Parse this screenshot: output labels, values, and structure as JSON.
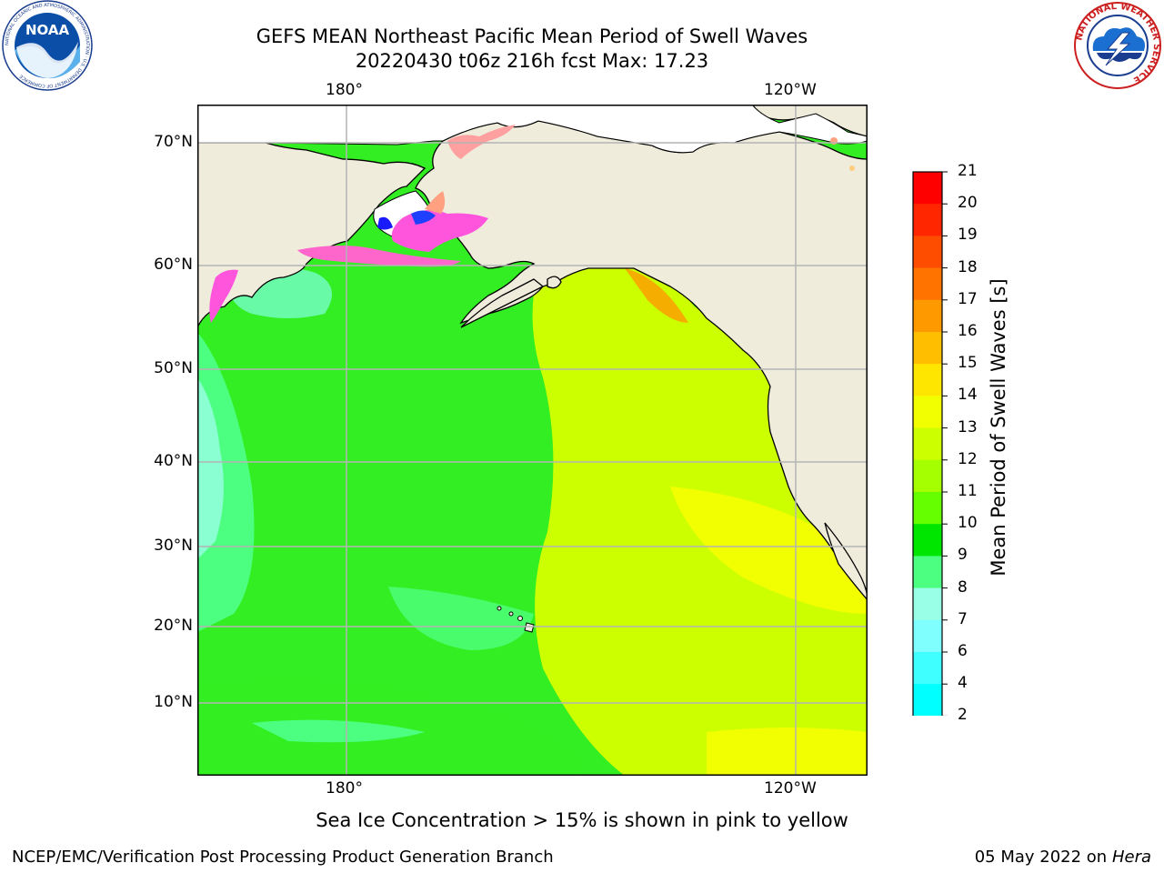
{
  "header": {
    "title_line1": "GEFS MEAN Northeast Pacific Mean Period of Swell Waves",
    "title_line2": "20220430 t06z 216h fcst    Max: 17.23"
  },
  "logos": {
    "left": {
      "name": "noaa-logo",
      "text": "NOAA",
      "ring_text": "NATIONAL OCEANIC AND ATMOSPHERIC ADMINISTRATION · U.S. DEPARTMENT OF COMMERCE"
    },
    "right": {
      "name": "nws-logo",
      "ring_text": "NATIONAL WEATHER SERVICE"
    }
  },
  "map": {
    "lon_ticks": [
      "180°",
      "120°W"
    ],
    "lat_ticks": [
      "70°N",
      "60°N",
      "50°N",
      "40°N",
      "30°N",
      "20°N",
      "10°N"
    ],
    "land_color": "#efecdc",
    "grid_color": "#b4b4b4"
  },
  "colorbar": {
    "label": "Mean Period of Swell Waves [s]",
    "tick_labels": [
      "21",
      "20",
      "19",
      "18",
      "17",
      "16",
      "15",
      "14",
      "13",
      "12",
      "11",
      "10",
      "9",
      "8",
      "7",
      "6",
      "4",
      "2"
    ],
    "colors_top_to_bottom": [
      "#ff0000",
      "#ff2600",
      "#ff4d00",
      "#ff7300",
      "#ff9900",
      "#ffbf00",
      "#ffe600",
      "#f2ff00",
      "#ccff00",
      "#a6ff00",
      "#66ff00",
      "#00e600",
      "#4dff80",
      "#99ffe6",
      "#80ffff",
      "#40ffff",
      "#00ffff",
      "#00bfff",
      "#0080ff"
    ],
    "extend_color": "#0000ff"
  },
  "footer": {
    "caption": "Sea Ice Concentration > 15% is shown in pink to yellow",
    "left": "NCEP/EMC/Verification Post Processing Product Generation Branch",
    "date": "05 May 2022 on",
    "host": "Hera"
  }
}
